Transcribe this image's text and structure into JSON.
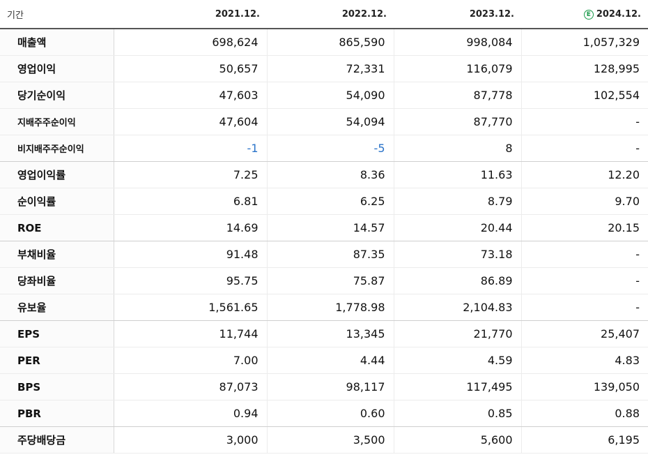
{
  "header": {
    "label": "기간",
    "periods": [
      "2021.12.",
      "2022.12.",
      "2023.12.",
      "2024.12."
    ],
    "estimate_marker": "E",
    "estimate_color": "#1a9a4a"
  },
  "rows": [
    {
      "label": "매출액",
      "values": [
        "698,624",
        "865,590",
        "998,084",
        "1,057,329"
      ]
    },
    {
      "label": "영업이익",
      "values": [
        "50,657",
        "72,331",
        "116,079",
        "128,995"
      ]
    },
    {
      "label": "당기순이익",
      "values": [
        "47,603",
        "54,090",
        "87,778",
        "102,554"
      ]
    },
    {
      "label": "지배주주순이익",
      "values": [
        "47,604",
        "54,094",
        "87,770",
        "-"
      ]
    },
    {
      "label": "비지배주주순이익",
      "values": [
        "-1",
        "-5",
        "8",
        "-"
      ]
    },
    {
      "label": "영업이익률",
      "values": [
        "7.25",
        "8.36",
        "11.63",
        "12.20"
      ]
    },
    {
      "label": "순이익률",
      "values": [
        "6.81",
        "6.25",
        "8.79",
        "9.70"
      ]
    },
    {
      "label": "ROE",
      "values": [
        "14.69",
        "14.57",
        "20.44",
        "20.15"
      ]
    },
    {
      "label": "부채비율",
      "values": [
        "91.48",
        "87.35",
        "73.18",
        "-"
      ]
    },
    {
      "label": "당좌비율",
      "values": [
        "95.75",
        "75.87",
        "86.89",
        "-"
      ]
    },
    {
      "label": "유보율",
      "values": [
        "1,561.65",
        "1,778.98",
        "2,104.83",
        "-"
      ]
    },
    {
      "label": "EPS",
      "values": [
        "11,744",
        "13,345",
        "21,770",
        "25,407"
      ]
    },
    {
      "label": "PER",
      "values": [
        "7.00",
        "4.44",
        "4.59",
        "4.83"
      ]
    },
    {
      "label": "BPS",
      "values": [
        "87,073",
        "98,117",
        "117,495",
        "139,050"
      ]
    },
    {
      "label": "PBR",
      "values": [
        "0.94",
        "0.60",
        "0.85",
        "0.88"
      ]
    },
    {
      "label": "주당배당금",
      "values": [
        "3,000",
        "3,500",
        "5,600",
        "6,195"
      ]
    }
  ],
  "negative_color": "#2a73c9"
}
